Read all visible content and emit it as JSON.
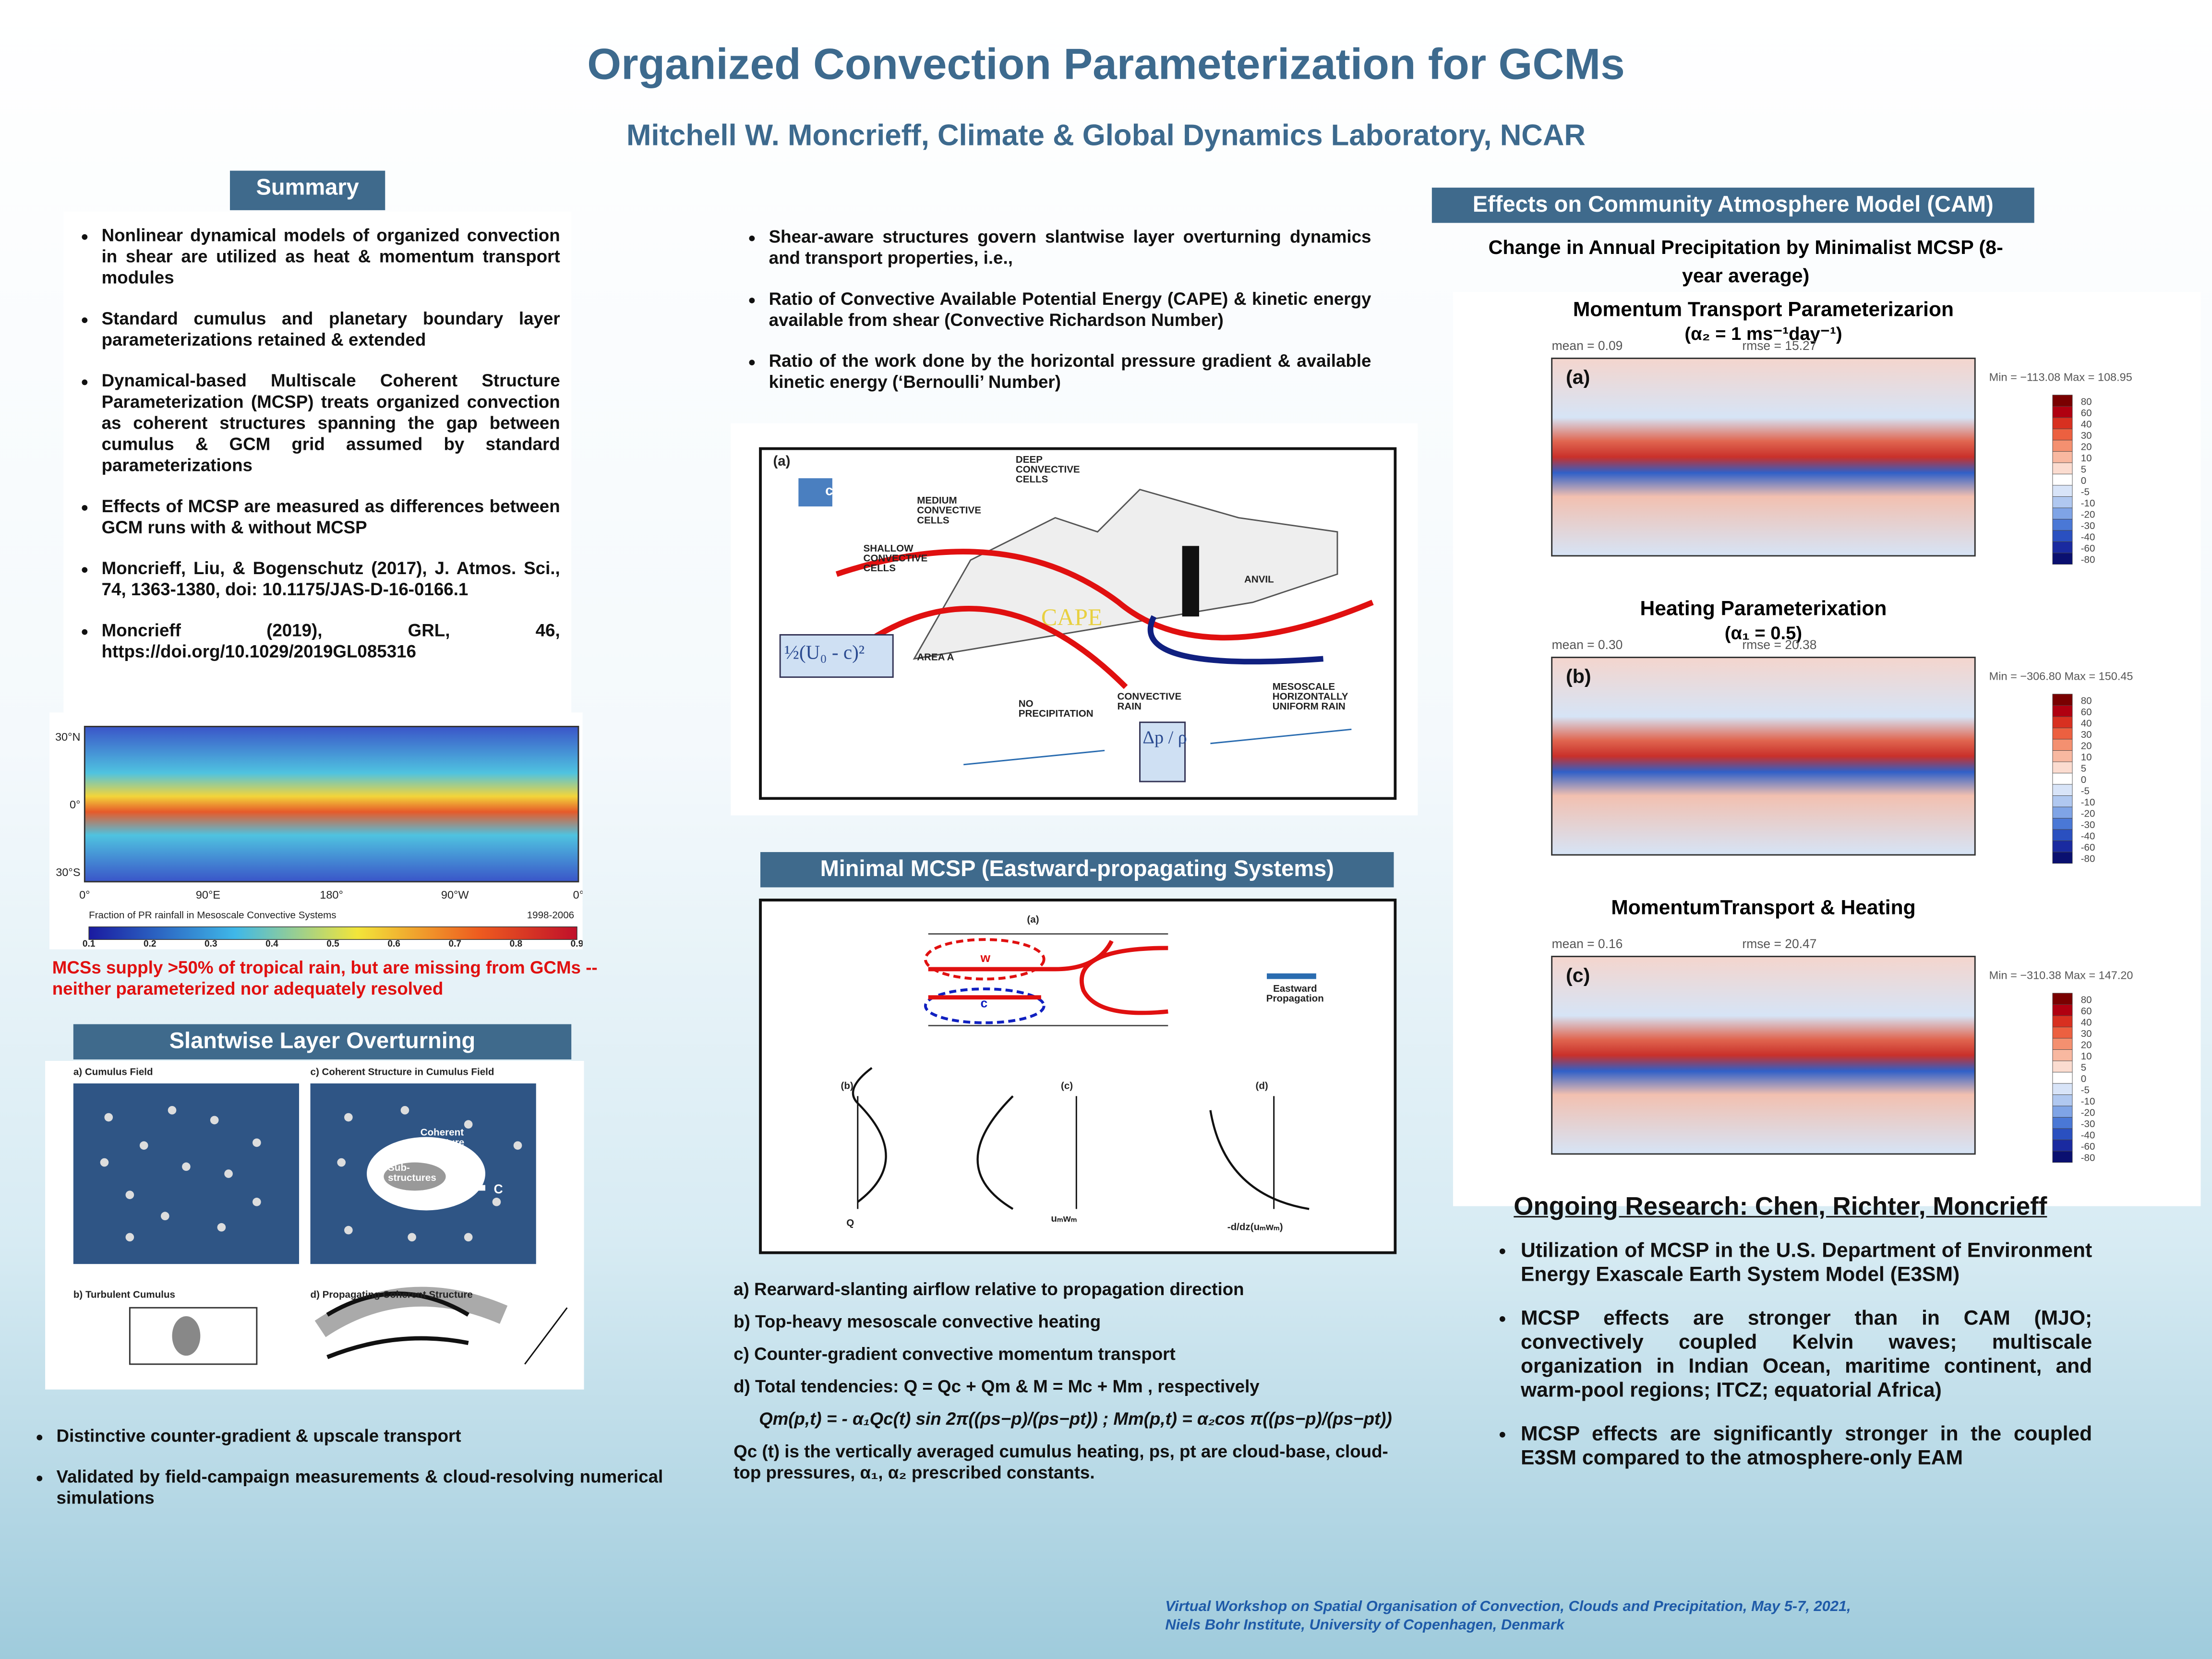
{
  "header": {
    "title": "Organized Convection Parameterization for GCMs",
    "authors": "Mitchell W. Moncrieff, Climate & Global Dynamics Laboratory, NCAR"
  },
  "summary": {
    "heading": "Summary",
    "bullets": [
      "Nonlinear dynamical models of organized convection in shear are utilized as heat & momentum transport modules",
      "Standard cumulus and planetary boundary layer  parameterizations retained & extended",
      "Dynamical-based Multiscale Coherent Structure Parameterization (MCSP) treats organized convection as coherent structures spanning the gap between cumulus & GCM grid assumed by standard parameterizations",
      "Effects of MCSP are measured as differences between GCM runs with & without MCSP",
      "Moncrieff, Liu, & Bogenschutz (2017), J. Atmos. Sci., 74, 1363-1380, doi: 10.1175/JAS-D-16-0166.1",
      "Moncrieff (2019), GRL, 46, https://doi.org/10.1029/2019GL085316"
    ]
  },
  "mcs_map": {
    "lat_labels": [
      "30°N",
      "0°",
      "30°S"
    ],
    "lon_labels": [
      "0°",
      "90°E",
      "180°",
      "90°W",
      "0°"
    ],
    "caption": "Fraction of PR rainfall in Mesoscale Convective Systems",
    "period": "1998-2006",
    "colorbar": [
      0.1,
      0.2,
      0.3,
      0.4,
      0.5,
      0.6,
      0.7,
      0.8,
      0.9
    ],
    "note": "MCSs supply >50% of tropical rain, but are missing from GCMs -- neither parameterized nor adequately resolved"
  },
  "slantwise": {
    "heading": "Slantwise Layer Overturning",
    "panels": [
      "a) Cumulus Field",
      "c) Coherent Structure in Cumulus Field",
      "b) Turbulent Cumulus",
      "d) Propagating Coherent Structure"
    ],
    "labels": [
      "Coherent Structure",
      "Sub-structures",
      "C"
    ],
    "bullets": [
      "Distinctive counter-gradient & upscale transport",
      "Validated by field-campaign measurements & cloud-resolving numerical simulations"
    ]
  },
  "middle": {
    "bullets": [
      "Shear-aware structures govern slantwise layer overturning dynamics and transport properties, i.e.,",
      "Ratio of Convective Available Potential Energy (CAPE) & kinetic energy available from shear (Convective Richardson Number)",
      "Ratio of the work done by the horizontal pressure gradient & available kinetic energy (‘Bernoulli’ Number)"
    ],
    "figure_labels": [
      "(a)",
      "c",
      "DEEP CONVECTIVE CELLS",
      "MEDIUM CONVECTIVE CELLS",
      "SHALLOW CONVECTIVE CELLS",
      "ANVIL",
      "CAPE",
      "½(U₀ - c)²",
      "AREA A",
      "NO PRECIPITATION",
      "CONVECTIVE RAIN",
      "MESOSCALE HORIZONTALLY UNIFORM RAIN",
      "Δp / ρ"
    ]
  },
  "minimal": {
    "heading": "Minimal MCSP (Eastward-propagating Systems)",
    "figure_labels": [
      "(a)",
      "w",
      "c",
      "Eastward Propagation",
      "(b)",
      "(c)",
      "(d)",
      "Q",
      "uₘwₘ",
      "-d/dz(uₘwₘ)"
    ],
    "items": [
      "a) Rearward-slanting airflow relative to propagation direction",
      "b) Top-heavy mesoscale convective heating",
      "c) Counter-gradient convective momentum transport",
      "d) Total tendencies: Q = Qc + Qm  &  M = Mc + Mm , respectively",
      "Qm(p,t) = - α₁Qc(t) sin 2π((ps−p)/(ps−pt))   ;   Mm(p,t) = α₂cos π((ps−p)/(ps−pt))",
      "Qc (t) is the vertically averaged cumulus heating,  ps, pt are cloud-base, cloud-top pressures, α₁, α₂ prescribed  constants."
    ]
  },
  "cam": {
    "heading": "Effects on  Community Atmosphere Model (CAM)",
    "subheading": "Change in Annual Precipitation by Minimalist MCSP (8-year average)",
    "panels": [
      {
        "title": "Momentum Transport Parameterizarion",
        "param": "(α₂ = 1 ms⁻¹day⁻¹)",
        "label": "(a)",
        "mean": "mean = 0.09",
        "rmse": "rmse = 15.27",
        "minmax": "Min = −113.08 Max = 108.95"
      },
      {
        "title": "Heating Parameterixation",
        "param": "(α₁ = 0.5)",
        "label": "(b)",
        "mean": "mean = 0.30",
        "rmse": "rmse = 20.38",
        "minmax": "Min = −306.80 Max = 150.45"
      },
      {
        "title": "MomentumTransport & Heating",
        "param": null,
        "label": "(c)",
        "mean": "mean = 0.16",
        "rmse": "rmse = 20.47",
        "minmax": "Min = −310.38 Max = 147.20"
      }
    ],
    "colorbar": [
      80,
      60,
      40,
      30,
      20,
      10,
      5,
      0,
      -5,
      -10,
      -20,
      -30,
      -40,
      -60,
      -80
    ]
  },
  "ongoing": {
    "heading": "Ongoing Research: Chen, Richter, Moncrieff",
    "bullets": [
      "Utilization of  MCSP in the U.S. Department of Environment Energy Exascale Earth System Model (E3SM)",
      "MCSP effects are stronger than in CAM (MJO; convectively coupled Kelvin waves; multiscale organization in Indian Ocean, maritime continent, and warm-pool regions; ITCZ; equatorial Africa)",
      "MCSP effects are significantly stronger in the coupled E3SM compared to the atmosphere-only EAM"
    ]
  },
  "footer": "Virtual Workshop on Spatial Organisation of Convection, Clouds and Precipitation, May 5-7, 2021, Niels Bohr Institute, University of Copenhagen, Denmark"
}
